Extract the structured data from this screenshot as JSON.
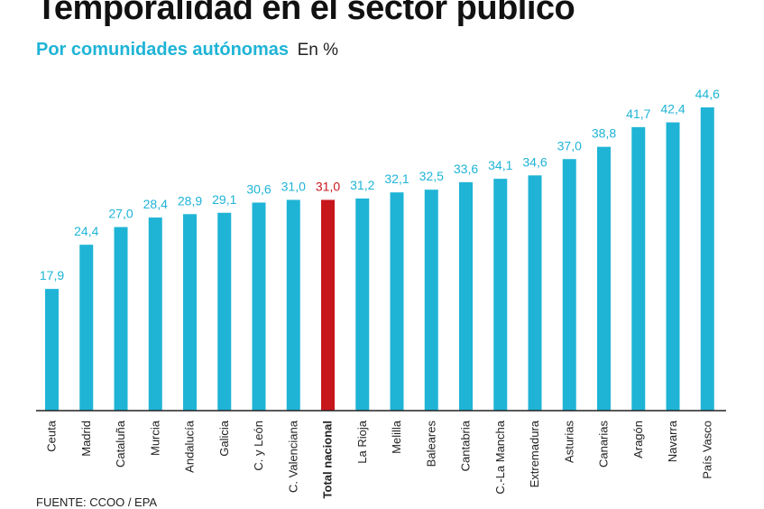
{
  "title": "Temporalidad en el sector público",
  "subtitle": "Por comunidades autónomas",
  "unit": "En %",
  "source": "FUENTE: CCOO / EPA",
  "colors": {
    "bar": "#1fb4d6",
    "highlight": "#c8161d",
    "label": "#1fb4d6",
    "highlight_label": "#c8161d"
  },
  "chart_data": {
    "type": "bar",
    "title": "Temporalidad en el sector público",
    "subtitle": "Por comunidades autónomas",
    "ylabel": "En %",
    "xlabel": "",
    "categories": [
      "Ceuta",
      "Madrid",
      "Cataluña",
      "Murcia",
      "Andalucía",
      "Galicia",
      "C. y León",
      "C. Valenciana",
      "Total nacional",
      "La Rioja",
      "Melilla",
      "Baleares",
      "Cantabria",
      "C.-La Mancha",
      "Extremadura",
      "Asturias",
      "Canarias",
      "Aragón",
      "Navarra",
      "País Vasco"
    ],
    "values": [
      17.9,
      24.4,
      27.0,
      28.4,
      28.9,
      29.1,
      30.6,
      31.0,
      31.0,
      31.2,
      32.1,
      32.5,
      33.6,
      34.1,
      34.6,
      37.0,
      38.8,
      41.7,
      42.4,
      44.6
    ],
    "value_labels": [
      "17,9",
      "24,4",
      "27,0",
      "28,4",
      "28,9",
      "29,1",
      "30,6",
      "31,0",
      "31,0",
      "31,2",
      "32,1",
      "32,5",
      "33,6",
      "34,1",
      "34,6",
      "37,0",
      "38,8",
      "41,7",
      "42,4",
      "44,6"
    ],
    "highlight": "Total nacional",
    "ylim": [
      0,
      44.6
    ],
    "grid": false,
    "legend": "none"
  }
}
